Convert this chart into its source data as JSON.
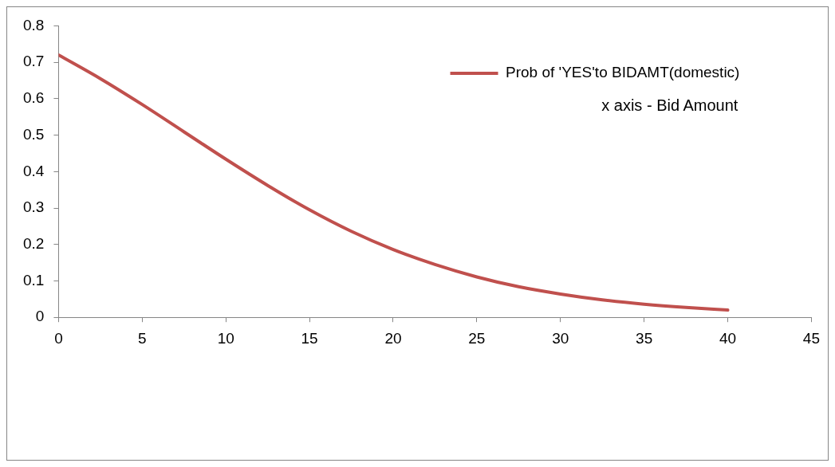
{
  "chart_data": {
    "type": "line",
    "x": [
      0,
      2.5,
      5,
      7.5,
      10,
      12.5,
      15,
      17.5,
      20,
      22.5,
      25,
      27.5,
      30,
      32.5,
      35,
      37.5,
      40
    ],
    "series": [
      {
        "name": "Prob of 'YES'to BIDAMT(domestic)",
        "color": "#c0504d",
        "values": [
          0.72,
          0.655,
          0.584,
          0.509,
          0.434,
          0.362,
          0.295,
          0.236,
          0.186,
          0.145,
          0.111,
          0.084,
          0.064,
          0.048,
          0.036,
          0.027,
          0.02
        ]
      }
    ],
    "xlim": [
      0,
      45
    ],
    "xticks": [
      0,
      5,
      10,
      15,
      20,
      25,
      30,
      35,
      40,
      45
    ],
    "ylim": [
      0,
      0.8
    ],
    "yticks": [
      0,
      0.1,
      0.2,
      0.3,
      0.4,
      0.5,
      0.6,
      0.7,
      0.8
    ],
    "annotations": [
      "x axis - Bid Amount"
    ],
    "legend": "top right",
    "grid": false,
    "marker": "none",
    "line_style": "solid"
  }
}
